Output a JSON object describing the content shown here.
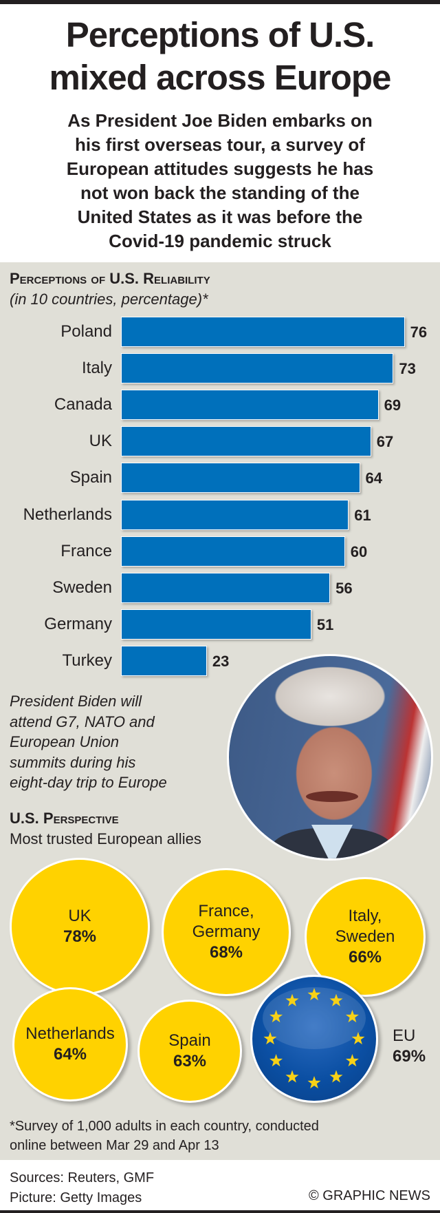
{
  "title_lines": [
    "Perceptions of U.S.",
    "mixed across Europe"
  ],
  "subtitle_lines": [
    "As President Joe Biden embarks on",
    "his first overseas tour, a survey of",
    "European attitudes suggests he has",
    "not won back the standing of the",
    "United States as it was before the",
    "Covid-19 pandemic struck"
  ],
  "chart_data": {
    "type": "bar",
    "orientation": "horizontal",
    "title": "Perceptions of U.S. Reliability",
    "subtitle": "(in 10 countries, percentage)*",
    "categories": [
      "Poland",
      "Italy",
      "Canada",
      "UK",
      "Spain",
      "Netherlands",
      "France",
      "Sweden",
      "Germany",
      "Turkey"
    ],
    "values": [
      76,
      73,
      69,
      67,
      64,
      61,
      60,
      56,
      51,
      23
    ],
    "value_labels": [
      "76",
      "73",
      "69",
      "67",
      "64",
      "61",
      "60",
      "56",
      "51",
      "23"
    ],
    "bar_color": "#0070bb",
    "grid": false
  },
  "note_lines": [
    "President Biden will",
    "attend G7, NATO and",
    "European Union",
    "summits during his",
    "eight-day trip to Europe"
  ],
  "perspective": {
    "heading": "U.S. Perspective",
    "subheading": "Most trusted European allies",
    "bubble_color": "#ffd200",
    "bubbles": [
      {
        "lines": [
          "UK"
        ],
        "pct": "78%"
      },
      {
        "lines": [
          "France,",
          "Germany"
        ],
        "pct": "68%"
      },
      {
        "lines": [
          "Italy,",
          "Sweden"
        ],
        "pct": "66%"
      },
      {
        "lines": [
          "Netherlands"
        ],
        "pct": "64%"
      },
      {
        "lines": [
          "Spain"
        ],
        "pct": "63%"
      }
    ],
    "eu": {
      "label": "EU",
      "pct": "69%",
      "icon": "eu-flag-icon"
    }
  },
  "footnote_lines": [
    "*Survey of 1,000 adults in each country, conducted",
    "online between Mar 29 and Apr 13"
  ],
  "sources": "Sources: Reuters, GMF",
  "picture_credit": "Picture: Getty Images",
  "credit": "© GRAPHIC NEWS"
}
